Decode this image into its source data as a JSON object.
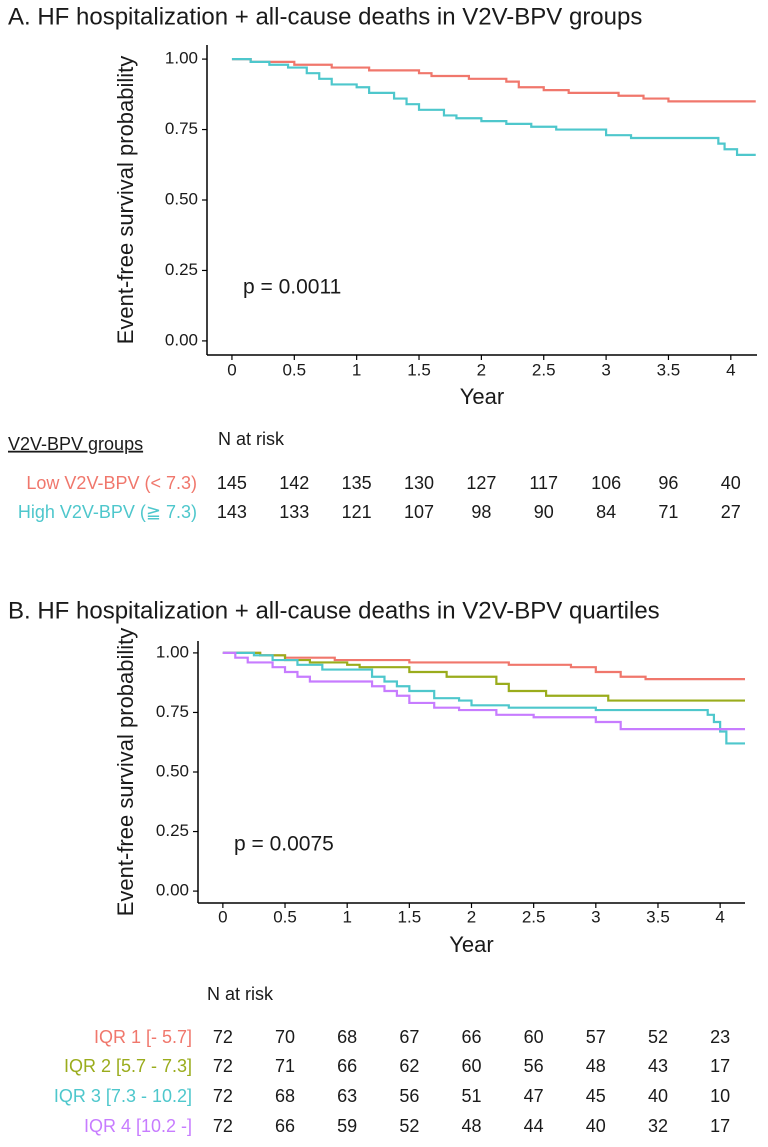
{
  "chart_data": [
    {
      "type": "step",
      "title": "A. HF hospitalization + all-cause deaths in V2V-BPV groups",
      "xlabel": "Year",
      "ylabel": "Event-free survival probability",
      "annotation": "p = 0.0011",
      "xlim": [
        -0.2,
        4.21
      ],
      "ylim": [
        -0.05,
        1.05
      ],
      "xticks": [
        0,
        0.5,
        1,
        1.5,
        2,
        2.5,
        3,
        3.5,
        4
      ],
      "yticks": [
        {
          "value": 0,
          "label": "0.00"
        },
        0.25,
        {
          "value": 0.5,
          "label": "0.50"
        },
        0.75,
        {
          "value": 1,
          "label": "1.00"
        }
      ],
      "risk_table_title": "N at risk",
      "risk_table_label": "V2V-BPV groups",
      "series": [
        {
          "name": "Low V2V-BPV (< 7.3)",
          "color": "#f0776c",
          "x": [
            0,
            0.15,
            0.5,
            0.8,
            1.1,
            1.5,
            1.6,
            1.9,
            2.2,
            2.3,
            2.5,
            2.7,
            3.1,
            3.3,
            3.5,
            4.2
          ],
          "values": [
            1,
            0.99,
            0.98,
            0.97,
            0.96,
            0.95,
            0.94,
            0.93,
            0.92,
            0.9,
            0.89,
            0.88,
            0.87,
            0.86,
            0.85,
            0.85
          ],
          "at_risk": [
            145,
            142,
            135,
            130,
            127,
            117,
            106,
            96,
            40
          ]
        },
        {
          "name": "High V2V-BPV (≧ 7.3)",
          "color": "#4ec7cc",
          "x": [
            0,
            0.15,
            0.3,
            0.45,
            0.6,
            0.7,
            0.8,
            1.0,
            1.1,
            1.3,
            1.4,
            1.5,
            1.7,
            1.8,
            2.0,
            2.2,
            2.4,
            2.6,
            3.0,
            3.2,
            3.9,
            3.95,
            4.05,
            4.2
          ],
          "values": [
            1,
            0.99,
            0.98,
            0.97,
            0.95,
            0.93,
            0.91,
            0.9,
            0.88,
            0.86,
            0.84,
            0.82,
            0.8,
            0.79,
            0.78,
            0.77,
            0.76,
            0.75,
            0.73,
            0.72,
            0.7,
            0.68,
            0.66,
            0.66
          ],
          "at_risk": [
            143,
            133,
            121,
            107,
            98,
            90,
            84,
            71,
            27
          ]
        }
      ]
    },
    {
      "type": "step",
      "title": "B. HF hospitalization + all-cause deaths in V2V-BPV quartiles",
      "xlabel": "Year",
      "ylabel": "Event-free survival probability",
      "annotation": "p = 0.0075",
      "xlim": [
        -0.2,
        4.2
      ],
      "ylim": [
        -0.05,
        1.05
      ],
      "xticks": [
        0,
        0.5,
        1,
        1.5,
        2,
        2.5,
        3,
        3.5,
        4
      ],
      "yticks": [
        {
          "value": 0,
          "label": "0.00"
        },
        0.25,
        {
          "value": 0.5,
          "label": "0.50"
        },
        0.75,
        {
          "value": 1,
          "label": "1.00"
        }
      ],
      "risk_table_title": "N at risk",
      "series": [
        {
          "name": "IQR 1 [- 5.7]",
          "color": "#f0776c",
          "x": [
            0,
            0.3,
            0.5,
            0.9,
            1.5,
            2.3,
            2.8,
            3.0,
            3.2,
            3.4,
            4.2
          ],
          "values": [
            1,
            0.99,
            0.98,
            0.97,
            0.96,
            0.95,
            0.94,
            0.92,
            0.9,
            0.89,
            0.89
          ],
          "at_risk": [
            72,
            70,
            68,
            67,
            66,
            60,
            57,
            52,
            23
          ]
        },
        {
          "name": "IQR 2 [5.7 - 7.3]",
          "color": "#9aac1c",
          "x": [
            0,
            0.3,
            0.5,
            0.7,
            1.0,
            1.1,
            1.5,
            1.8,
            2.2,
            2.3,
            2.6,
            3.1,
            4.2
          ],
          "values": [
            1,
            0.99,
            0.97,
            0.96,
            0.95,
            0.94,
            0.92,
            0.9,
            0.87,
            0.84,
            0.82,
            0.8,
            0.8
          ],
          "at_risk": [
            72,
            71,
            66,
            62,
            60,
            56,
            48,
            43,
            17
          ]
        },
        {
          "name": "IQR 3 [7.3 - 10.2]",
          "color": "#4ec7cc",
          "x": [
            0,
            0.25,
            0.4,
            0.6,
            0.8,
            1.2,
            1.3,
            1.4,
            1.5,
            1.7,
            1.9,
            2.0,
            2.3,
            3.0,
            3.9,
            3.95,
            4.0,
            4.05,
            4.2
          ],
          "values": [
            1,
            0.99,
            0.97,
            0.95,
            0.93,
            0.9,
            0.88,
            0.86,
            0.84,
            0.81,
            0.8,
            0.78,
            0.77,
            0.76,
            0.74,
            0.71,
            0.67,
            0.62,
            0.62
          ],
          "at_risk": [
            72,
            68,
            63,
            56,
            51,
            47,
            45,
            40,
            10
          ]
        },
        {
          "name": "IQR 4 [10.2 -]",
          "color": "#c77cff",
          "x": [
            0,
            0.1,
            0.2,
            0.4,
            0.5,
            0.6,
            0.7,
            1.2,
            1.3,
            1.4,
            1.5,
            1.7,
            1.9,
            2.2,
            2.5,
            3.0,
            3.2,
            4.2
          ],
          "values": [
            1,
            0.98,
            0.96,
            0.94,
            0.92,
            0.9,
            0.88,
            0.86,
            0.84,
            0.82,
            0.79,
            0.77,
            0.76,
            0.74,
            0.73,
            0.71,
            0.68,
            0.68
          ],
          "at_risk": [
            72,
            66,
            59,
            52,
            48,
            44,
            40,
            32,
            17
          ]
        }
      ]
    }
  ]
}
